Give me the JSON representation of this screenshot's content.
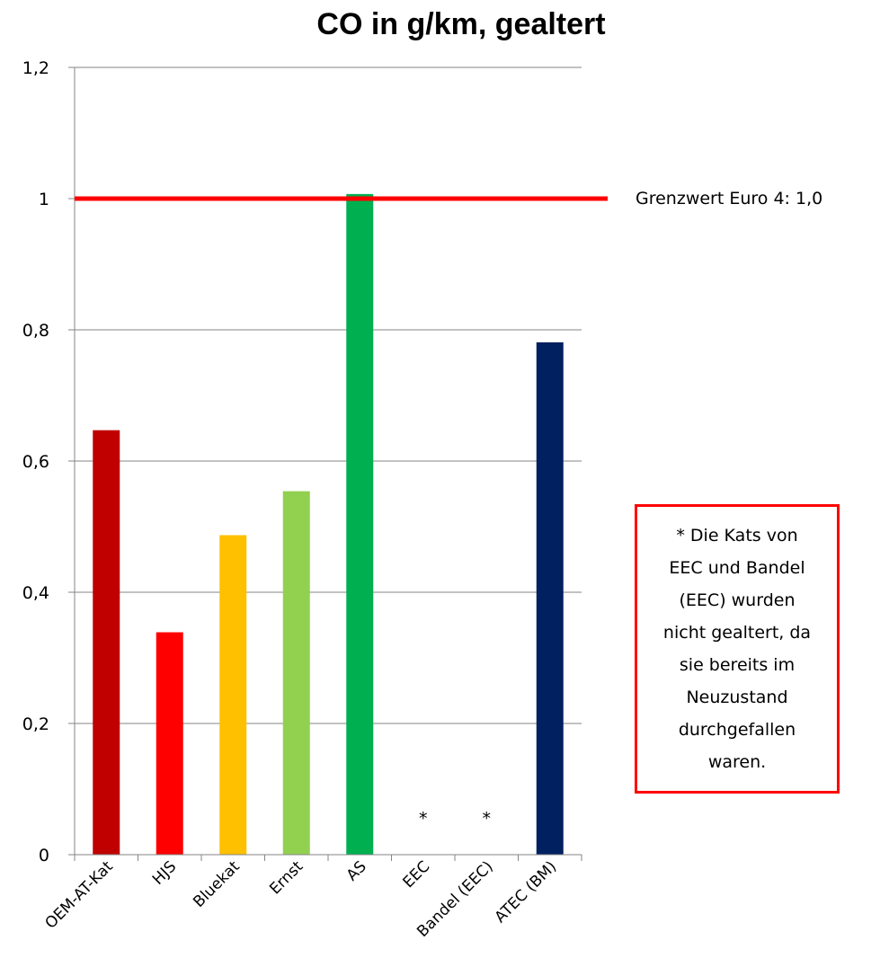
{
  "chart_data": {
    "type": "bar",
    "title": "CO in g/km, gealtert",
    "xlabel": "",
    "ylabel": "",
    "categories": [
      "OEM-AT-Kat",
      "HJS",
      "Bluekat",
      "Ernst",
      "AS",
      "EEC",
      "Bandel (EEC)",
      "ATEC (BM)"
    ],
    "values": [
      0.647,
      0.339,
      0.487,
      0.554,
      1.007,
      null,
      null,
      0.781
    ],
    "bar_colors": [
      "#c00000",
      "#ff0000",
      "#ffc000",
      "#92d050",
      "#00b050",
      "#ffffff",
      "#ffffff",
      "#002060"
    ],
    "missing_markers": [
      "",
      "",
      "",
      "",
      "",
      "*",
      "*",
      ""
    ],
    "ylim": [
      0,
      1.2
    ],
    "yticks": [
      "0",
      "0,2",
      "0,4",
      "0,6",
      "0,8",
      "1",
      "1,2"
    ],
    "grid": true,
    "reference_line": {
      "value": 1.0,
      "label": "Grenzwert Euro 4: 1,0",
      "color": "#ff0000"
    },
    "note": "* Die Kats von EEC und Bandel (EEC) wurden nicht gealtert, da sie bereits im Neuzustand durchgefallen waren."
  }
}
